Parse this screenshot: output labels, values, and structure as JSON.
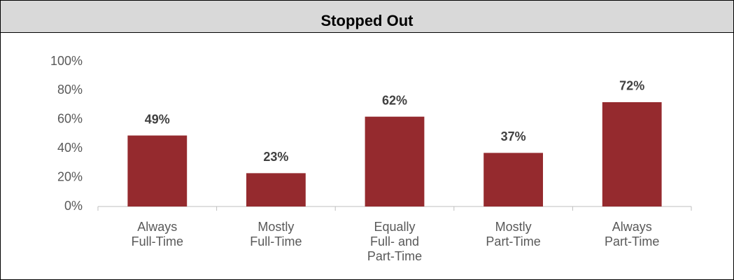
{
  "chart_data": {
    "type": "bar",
    "title": "Stopped Out",
    "categories": [
      "Always\nFull-Time",
      "Mostly\nFull-Time",
      "Equally\nFull- and\nPart-Time",
      "Mostly\nPart-Time",
      "Always\nPart-Time"
    ],
    "values": [
      49,
      23,
      62,
      37,
      72
    ],
    "value_labels": [
      "49%",
      "23%",
      "62%",
      "37%",
      "72%"
    ],
    "color": "#952a2e",
    "ylim": [
      0,
      100
    ],
    "yticks": [
      {
        "value": 0,
        "label": "0%"
      },
      {
        "value": 20,
        "label": "20%"
      },
      {
        "value": 40,
        "label": "40%"
      },
      {
        "value": 60,
        "label": "60%"
      },
      {
        "value": 80,
        "label": "80%"
      },
      {
        "value": 100,
        "label": "100%"
      }
    ],
    "grid": false
  }
}
